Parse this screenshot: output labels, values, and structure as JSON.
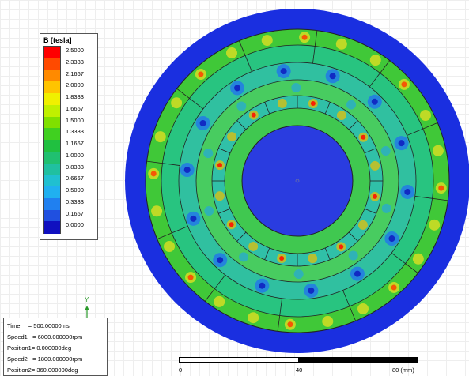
{
  "legend": {
    "title": "B [tesla]",
    "levels": [
      {
        "value": "2.5000",
        "color": "#ff0000"
      },
      {
        "value": "2.3333",
        "color": "#ff4a00"
      },
      {
        "value": "2.1667",
        "color": "#ff8a00"
      },
      {
        "value": "2.0000",
        "color": "#ffc400"
      },
      {
        "value": "1.8333",
        "color": "#f0f000"
      },
      {
        "value": "1.6667",
        "color": "#c0f000"
      },
      {
        "value": "1.5000",
        "color": "#80e000"
      },
      {
        "value": "1.3333",
        "color": "#40d020"
      },
      {
        "value": "1.1667",
        "color": "#20c040"
      },
      {
        "value": "1.0000",
        "color": "#20c070"
      },
      {
        "value": "0.8333",
        "color": "#20c0a0"
      },
      {
        "value": "0.6667",
        "color": "#20c0d0"
      },
      {
        "value": "0.5000",
        "color": "#20b0f0"
      },
      {
        "value": "0.3333",
        "color": "#2080f0"
      },
      {
        "value": "0.1667",
        "color": "#2050e0"
      },
      {
        "value": "0.0000",
        "color": "#1010c0"
      }
    ]
  },
  "info": {
    "time": "Time     = 500.00000ms",
    "speed1": "Speed1   = 6000.000000rpm",
    "position1": "Position1= 0.000000deg",
    "speed2": "Speed2   = 1800.000000rpm",
    "position2": "Position2= 360.000000deg"
  },
  "axis": {
    "y_label": "Y"
  },
  "scale": {
    "label_0": "0",
    "label_40": "40",
    "label_80": "80 (mm)"
  }
}
